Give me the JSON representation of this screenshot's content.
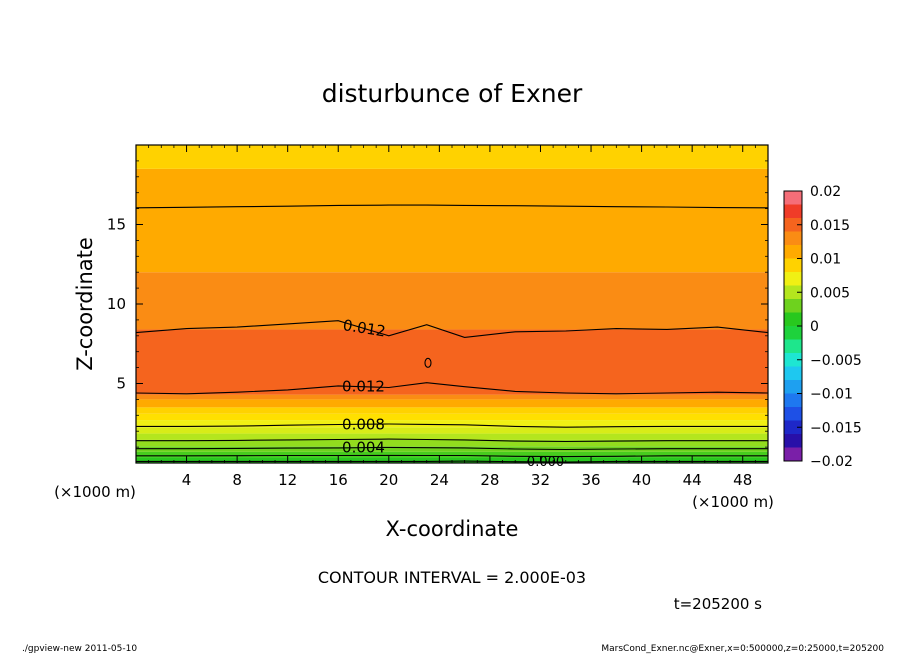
{
  "chart_data": {
    "type": "heatmap",
    "title": "disturbunce of Exner",
    "xlabel": "X-coordinate",
    "ylabel": "Z-coordinate",
    "x_unit": "(×1000 m)",
    "y_unit": "(×1000 m)",
    "xlim": [
      0,
      50
    ],
    "ylim": [
      0,
      20
    ],
    "x_ticks": [
      4,
      8,
      12,
      16,
      20,
      24,
      28,
      32,
      36,
      40,
      44,
      48
    ],
    "y_ticks": [
      5,
      10,
      15
    ],
    "colorbar": {
      "range": [
        -0.02,
        0.02
      ],
      "tick_values": [
        0.02,
        0.015,
        0.01,
        0.005,
        0,
        -0.005,
        -0.01,
        -0.015,
        -0.02
      ],
      "tick_labels": [
        "0.02",
        "0.015",
        "0.01",
        "0.005",
        "0",
        "−0.005",
        "−0.01",
        "−0.015",
        "−0.02"
      ]
    },
    "color_levels": [
      {
        "min": -0.02,
        "max": -0.018,
        "color": "#7a1fa8"
      },
      {
        "min": -0.018,
        "max": -0.016,
        "color": "#2810a8"
      },
      {
        "min": -0.016,
        "max": -0.014,
        "color": "#1e28c8"
      },
      {
        "min": -0.014,
        "max": -0.012,
        "color": "#1e50e6"
      },
      {
        "min": -0.012,
        "max": -0.01,
        "color": "#1e78f0"
      },
      {
        "min": -0.01,
        "max": -0.008,
        "color": "#1ea0f0"
      },
      {
        "min": -0.008,
        "max": -0.006,
        "color": "#1ec8f0"
      },
      {
        "min": -0.006,
        "max": -0.004,
        "color": "#1ee6d2"
      },
      {
        "min": -0.004,
        "max": -0.002,
        "color": "#1ee68c"
      },
      {
        "min": -0.002,
        "max": 0.0,
        "color": "#1ed23c"
      },
      {
        "min": 0.0,
        "max": 0.002,
        "color": "#28c81e"
      },
      {
        "min": 0.002,
        "max": 0.004,
        "color": "#6ed21e"
      },
      {
        "min": 0.004,
        "max": 0.006,
        "color": "#b4e61e"
      },
      {
        "min": 0.006,
        "max": 0.008,
        "color": "#f0f014"
      },
      {
        "min": 0.008,
        "max": 0.01,
        "color": "#ffd200"
      },
      {
        "min": 0.01,
        "max": 0.012,
        "color": "#ffaa00"
      },
      {
        "min": 0.012,
        "max": 0.014,
        "color": "#fa8c14"
      },
      {
        "min": 0.014,
        "max": 0.016,
        "color": "#f5641e"
      },
      {
        "min": 0.016,
        "max": 0.018,
        "color": "#f03c28"
      },
      {
        "min": 0.018,
        "max": 0.02,
        "color": "#f56e78"
      }
    ],
    "field_bands": [
      {
        "z_min": 0.0,
        "z_max": 0.35,
        "color": "#28c81e"
      },
      {
        "z_min": 0.35,
        "z_max": 0.7,
        "color": "#46cc1e"
      },
      {
        "z_min": 0.7,
        "z_max": 1.05,
        "color": "#6ed21e"
      },
      {
        "z_min": 1.05,
        "z_max": 1.45,
        "color": "#92dc1e"
      },
      {
        "z_min": 1.45,
        "z_max": 1.85,
        "color": "#b4e61e"
      },
      {
        "z_min": 1.85,
        "z_max": 2.25,
        "color": "#d8ec18"
      },
      {
        "z_min": 2.25,
        "z_max": 2.7,
        "color": "#f0f014"
      },
      {
        "z_min": 2.7,
        "z_max": 3.1,
        "color": "#ffe000"
      },
      {
        "z_min": 3.1,
        "z_max": 3.5,
        "color": "#ffd200"
      },
      {
        "z_min": 3.5,
        "z_max": 4.0,
        "color": "#ffaa00"
      },
      {
        "z_min": 4.0,
        "z_max": 4.3,
        "color": "#fa8c14"
      },
      {
        "z_min": 4.3,
        "z_max": 8.4,
        "color": "#f5641e"
      },
      {
        "z_min": 8.4,
        "z_max": 12.0,
        "color": "#fa8c14"
      },
      {
        "z_min": 12.0,
        "z_max": 18.5,
        "color": "#ffaa00"
      },
      {
        "z_min": 18.5,
        "z_max": 20.0,
        "color": "#ffd200"
      }
    ],
    "contours": [
      {
        "level": 0.0,
        "label": "0.000",
        "z": [
          0.1,
          0.1,
          0.1,
          0.1,
          0.1,
          0.1,
          0.1,
          0.12,
          0.08,
          0.06,
          0.1,
          0.1,
          0.1,
          0.1
        ]
      },
      {
        "level": 0.002,
        "label": "",
        "z": [
          0.45,
          0.45,
          0.46,
          0.47,
          0.47,
          0.48,
          0.47,
          0.47,
          0.42,
          0.4,
          0.42,
          0.45,
          0.45,
          0.45
        ]
      },
      {
        "level": 0.004,
        "label": "0.004",
        "z": [
          0.9,
          0.9,
          0.92,
          0.94,
          0.95,
          0.98,
          0.96,
          0.95,
          0.88,
          0.85,
          0.88,
          0.9,
          0.9,
          0.9
        ]
      },
      {
        "level": 0.006,
        "label": "",
        "z": [
          1.4,
          1.4,
          1.42,
          1.45,
          1.48,
          1.5,
          1.48,
          1.45,
          1.38,
          1.35,
          1.38,
          1.4,
          1.4,
          1.4
        ]
      },
      {
        "level": 0.008,
        "label": "0.008",
        "z": [
          2.3,
          2.3,
          2.32,
          2.38,
          2.42,
          2.45,
          2.43,
          2.4,
          2.3,
          2.25,
          2.28,
          2.3,
          2.3,
          2.3
        ]
      },
      {
        "level": 0.012,
        "label": "0.012",
        "z": [
          4.4,
          4.35,
          4.45,
          4.6,
          4.85,
          4.75,
          5.05,
          4.8,
          4.5,
          4.4,
          4.35,
          4.4,
          4.45,
          4.4
        ]
      },
      {
        "level": 0.012,
        "label": "0.012",
        "z": [
          8.2,
          8.45,
          8.55,
          8.75,
          8.95,
          8.0,
          8.7,
          7.9,
          8.25,
          8.3,
          8.45,
          8.4,
          8.55,
          8.2
        ]
      },
      {
        "level": 0.014,
        "label": "",
        "z": [
          16.05,
          16.08,
          16.12,
          16.15,
          16.2,
          16.22,
          16.22,
          16.2,
          16.18,
          16.15,
          16.12,
          16.1,
          16.06,
          16.05
        ]
      }
    ],
    "contour_x": [
      0,
      4,
      8,
      12,
      16,
      20,
      23,
      26,
      30,
      34,
      38,
      42,
      46,
      50
    ],
    "contour_interval_text": "CONTOUR INTERVAL = 2.000E-03",
    "time_text": "t=205200 s"
  },
  "footer": {
    "left": "./gpview-new   2011-05-10",
    "right": "MarsCond_Exner.nc@Exner,x=0:500000,z=0:25000,t=205200"
  }
}
